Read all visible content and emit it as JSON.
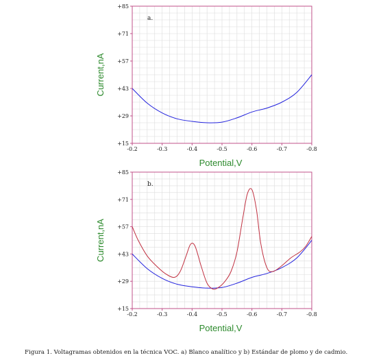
{
  "colors": {
    "frame": "#c0508a",
    "grid": "#dcdcdc",
    "blank": "#2222dd",
    "standard": "#c03040",
    "axis_title": "#2d8a2d"
  },
  "caption": "Figura 1. Voltagramas obtenidos en la técnica VOC. a) Blanco analítico y b) Estándar de plomo y de cadmio.",
  "chart_data": [
    {
      "type": "line",
      "panel_label": "a.",
      "xlabel": "Potential,V",
      "ylabel": "Current,nA",
      "xlim": [
        -0.2,
        -0.8
      ],
      "ylim": [
        15,
        85
      ],
      "x_ticks": [
        "-0.2",
        "-0.3",
        "-0.4",
        "-0.5",
        "-0.6",
        "-0.7",
        "-0.8"
      ],
      "y_ticks": [
        "+15",
        "+29",
        "+43",
        "+57",
        "+71",
        "+85"
      ],
      "grid": true,
      "series": [
        {
          "color": "#2222dd",
          "x": [
            -0.2,
            -0.25,
            -0.3,
            -0.35,
            -0.4,
            -0.45,
            -0.5,
            -0.55,
            -0.6,
            -0.65,
            -0.7,
            -0.75,
            -0.8
          ],
          "y": [
            43,
            35.5,
            30.5,
            27.5,
            26.2,
            25.5,
            25.8,
            28,
            31,
            33,
            36,
            41,
            50
          ]
        }
      ]
    },
    {
      "type": "line",
      "panel_label": "b.",
      "xlabel": "Potential,V",
      "ylabel": "Current,nA",
      "xlim": [
        -0.2,
        -0.8
      ],
      "ylim": [
        15,
        85
      ],
      "x_ticks": [
        "-0.2",
        "-0.3",
        "-0.4",
        "-0.5",
        "-0.6",
        "-0.7",
        "-0.8"
      ],
      "y_ticks": [
        "+15",
        "+29",
        "+43",
        "+57",
        "+71",
        "+85"
      ],
      "grid": true,
      "series": [
        {
          "color": "#2222dd",
          "x": [
            -0.2,
            -0.25,
            -0.3,
            -0.35,
            -0.4,
            -0.45,
            -0.5,
            -0.55,
            -0.6,
            -0.65,
            -0.7,
            -0.75,
            -0.8
          ],
          "y": [
            43,
            35.5,
            30.5,
            27.5,
            26.2,
            25.5,
            25.8,
            28,
            31,
            33,
            36,
            41,
            50
          ]
        },
        {
          "color": "#c03040",
          "x": [
            -0.2,
            -0.22,
            -0.25,
            -0.28,
            -0.31,
            -0.34,
            -0.36,
            -0.38,
            -0.395,
            -0.41,
            -0.43,
            -0.45,
            -0.47,
            -0.49,
            -0.51,
            -0.53,
            -0.55,
            -0.57,
            -0.585,
            -0.6,
            -0.615,
            -0.63,
            -0.65,
            -0.67,
            -0.7,
            -0.73,
            -0.76,
            -0.78,
            -0.8
          ],
          "y": [
            57,
            50,
            42,
            37,
            33,
            31,
            34,
            42,
            48,
            47,
            37,
            28,
            25,
            26,
            29,
            34,
            44,
            62,
            74,
            76,
            66,
            48,
            36,
            34,
            37,
            41,
            44,
            47,
            52
          ]
        }
      ]
    }
  ]
}
